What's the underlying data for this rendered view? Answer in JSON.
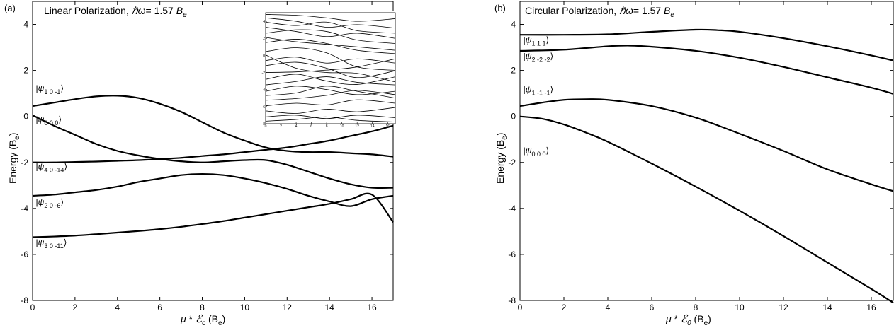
{
  "panels": [
    {
      "id": "a",
      "letter": "(a)",
      "title_prefix": "Linear Polarization, ",
      "title_hw": "ℏω",
      "title_rest": "= 1.57 ",
      "title_unit": "B",
      "title_unit_sub": "e",
      "xlabel_mu": "μ",
      "xlabel_star": " *",
      "xlabel_E": "ℰ",
      "xlabel_E_sub": "c",
      "xlabel_unit": " (B",
      "xlabel_unit_sub": "e",
      "xlabel_close": ")",
      "ylabel": "Energy (B",
      "ylabel_sub": "e",
      "ylabel_close": ")"
    },
    {
      "id": "b",
      "letter": "(b)",
      "title_prefix": "Circular Polarization, ",
      "title_hw": "ℏω",
      "title_rest": "= 1.57 ",
      "title_unit": "B",
      "title_unit_sub": "e",
      "xlabel_mu": "μ",
      "xlabel_star": " *",
      "xlabel_E": "ℰ",
      "xlabel_E_sub": "0",
      "xlabel_unit": " (B",
      "xlabel_unit_sub": "e",
      "xlabel_close": ")",
      "ylabel": "Energy (B",
      "ylabel_sub": "e",
      "ylabel_close": ")"
    }
  ],
  "chart_data": [
    {
      "type": "line",
      "panel": "a",
      "xlim": [
        0,
        17
      ],
      "ylim": [
        -8,
        5
      ],
      "xticks": [
        "0",
        "2",
        "4",
        "6",
        "8",
        "10",
        "12",
        "14",
        "16"
      ],
      "yticks": [
        "-8",
        "-6",
        "-4",
        "-2",
        "0",
        "2",
        "4"
      ],
      "grid": false,
      "series": [
        {
          "name": "|ψ10-1⟩",
          "label_main": "ψ",
          "label_sub": "1 0 -1",
          "label_at": [
            0.15,
            1.1
          ],
          "x": [
            0,
            1,
            2,
            3,
            4,
            5,
            6,
            7,
            8,
            9,
            10,
            11,
            12,
            13,
            14,
            15,
            16,
            17
          ],
          "y": [
            0.45,
            0.6,
            0.75,
            0.87,
            0.9,
            0.8,
            0.55,
            0.2,
            -0.25,
            -0.7,
            -1.05,
            -1.35,
            -1.5,
            -1.55,
            -1.55,
            -1.6,
            -1.65,
            -1.75
          ]
        },
        {
          "name": "|ψ000⟩",
          "label_main": "ψ",
          "label_sub": "0 0 0",
          "label_at": [
            0.15,
            -0.25
          ],
          "x": [
            0,
            1,
            2,
            3,
            4,
            5,
            6,
            7,
            8,
            9,
            10,
            11,
            12,
            13,
            14,
            15,
            16,
            17
          ],
          "y": [
            0.05,
            -0.4,
            -0.8,
            -1.2,
            -1.5,
            -1.7,
            -1.85,
            -1.95,
            -2.0,
            -1.95,
            -1.9,
            -1.9,
            -2.1,
            -2.4,
            -2.7,
            -2.95,
            -3.1,
            -3.1
          ]
        },
        {
          "name": "|ψ40-14⟩",
          "label_main": "ψ",
          "label_sub": "4 0 -14",
          "label_at": [
            0.15,
            -2.3
          ],
          "x": [
            0,
            1,
            2,
            3,
            4,
            5,
            6,
            7,
            8,
            9,
            10,
            11,
            12,
            13,
            14,
            15,
            16,
            17
          ],
          "y": [
            -2.0,
            -2.0,
            -1.98,
            -1.96,
            -1.93,
            -1.9,
            -1.85,
            -1.8,
            -1.72,
            -1.65,
            -1.55,
            -1.45,
            -1.35,
            -1.2,
            -1.05,
            -0.85,
            -0.65,
            -0.4
          ]
        },
        {
          "name": "|ψ20-6⟩",
          "label_main": "ψ",
          "label_sub": "2 0 -6",
          "label_at": [
            0.15,
            -3.85
          ],
          "x": [
            0,
            1,
            2,
            3,
            4,
            5,
            6,
            7,
            8,
            9,
            10,
            11,
            12,
            13,
            14,
            15,
            16,
            17
          ],
          "y": [
            -3.45,
            -3.4,
            -3.3,
            -3.2,
            -3.05,
            -2.85,
            -2.7,
            -2.55,
            -2.5,
            -2.55,
            -2.7,
            -2.9,
            -3.15,
            -3.45,
            -3.7,
            -3.9,
            -3.6,
            -3.45
          ]
        },
        {
          "name": "|ψ30-11⟩",
          "label_main": "ψ",
          "label_sub": "3 0 -11",
          "label_at": [
            0.15,
            -5.6
          ],
          "x": [
            0,
            1,
            2,
            3,
            4,
            5,
            6,
            7,
            8,
            9,
            10,
            11,
            12,
            13,
            14,
            15,
            16,
            17
          ],
          "y": [
            -5.25,
            -5.22,
            -5.18,
            -5.12,
            -5.05,
            -4.98,
            -4.9,
            -4.8,
            -4.68,
            -4.55,
            -4.4,
            -4.25,
            -4.1,
            -3.95,
            -3.8,
            -3.6,
            -3.4,
            -4.6
          ]
        }
      ],
      "inset": {
        "xlim": [
          0,
          17
        ],
        "ylim": [
          -8,
          5
        ],
        "xticks": [
          "0",
          "2",
          "4",
          "6",
          "8",
          "10",
          "12",
          "14",
          "16"
        ],
        "yticks": [
          "-8",
          "-6",
          "-4",
          "-2",
          "0",
          "2",
          "4"
        ],
        "series": [
          {
            "x": [
              0,
              4,
              8,
              12,
              17
            ],
            "y": [
              4.8,
              4.7,
              4.4,
              4.0,
              4.3
            ]
          },
          {
            "x": [
              0,
              4,
              8,
              12,
              17
            ],
            "y": [
              4.4,
              4.0,
              3.3,
              3.6,
              3.2
            ]
          },
          {
            "x": [
              0,
              4,
              8,
              12,
              17
            ],
            "y": [
              3.9,
              3.5,
              3.9,
              2.9,
              2.6
            ]
          },
          {
            "x": [
              0,
              4,
              8,
              12,
              17
            ],
            "y": [
              3.3,
              2.8,
              2.2,
              2.6,
              2.0
            ]
          },
          {
            "x": [
              0,
              4,
              8,
              12,
              17
            ],
            "y": [
              2.6,
              3.0,
              2.8,
              1.8,
              1.4
            ]
          },
          {
            "x": [
              0,
              4,
              8,
              12,
              17
            ],
            "y": [
              2.1,
              1.6,
              1.3,
              1.0,
              0.6
            ]
          },
          {
            "x": [
              0,
              4,
              8,
              12,
              17
            ],
            "y": [
              1.5,
              1.9,
              1.4,
              0.6,
              0.2
            ]
          },
          {
            "x": [
              0,
              4,
              8,
              12,
              17
            ],
            "y": [
              0.45,
              0.9,
              0.3,
              -1.35,
              -1.75
            ]
          },
          {
            "x": [
              0,
              4,
              8,
              12,
              17
            ],
            "y": [
              0.05,
              -1.5,
              -2.0,
              -2.1,
              -3.1
            ]
          },
          {
            "x": [
              0,
              4,
              8,
              12,
              17
            ],
            "y": [
              -0.6,
              -0.2,
              -0.9,
              -0.4,
              -0.9
            ]
          },
          {
            "x": [
              0,
              4,
              8,
              12,
              17
            ],
            "y": [
              -1.2,
              -0.8,
              -1.5,
              -2.6,
              -1.8
            ]
          },
          {
            "x": [
              0,
              4,
              8,
              12,
              17
            ],
            "y": [
              -2.0,
              -1.93,
              -1.72,
              -1.35,
              -0.4
            ]
          },
          {
            "x": [
              0,
              4,
              8,
              12,
              17
            ],
            "y": [
              -2.8,
              -2.2,
              -3.0,
              -3.4,
              -2.5
            ]
          },
          {
            "x": [
              0,
              4,
              8,
              12,
              17
            ],
            "y": [
              -3.45,
              -3.05,
              -2.5,
              -3.15,
              -3.45
            ]
          },
          {
            "x": [
              0,
              4,
              8,
              12,
              17
            ],
            "y": [
              -4.2,
              -3.6,
              -4.0,
              -4.6,
              -4.2
            ]
          },
          {
            "x": [
              0,
              4,
              8,
              12,
              17
            ],
            "y": [
              -4.7,
              -4.4,
              -3.6,
              -4.2,
              -5.0
            ]
          },
          {
            "x": [
              0,
              4,
              8,
              12,
              17
            ],
            "y": [
              -5.25,
              -5.05,
              -4.68,
              -4.1,
              -4.6
            ]
          },
          {
            "x": [
              0,
              4,
              8,
              12,
              17
            ],
            "y": [
              -5.9,
              -5.6,
              -5.8,
              -5.2,
              -5.6
            ]
          },
          {
            "x": [
              0,
              4,
              8,
              12,
              17
            ],
            "y": [
              -6.5,
              -6.8,
              -6.3,
              -6.6,
              -6.1
            ]
          },
          {
            "x": [
              0,
              4,
              8,
              12,
              17
            ],
            "y": [
              -7.2,
              -7.0,
              -7.4,
              -7.0,
              -7.3
            ]
          },
          {
            "x": [
              0,
              4,
              8,
              12,
              17
            ],
            "y": [
              -7.7,
              -7.5,
              -7.2,
              -7.6,
              -7.8
            ]
          }
        ]
      }
    },
    {
      "type": "line",
      "panel": "b",
      "xlim": [
        0,
        17
      ],
      "ylim": [
        -8,
        5
      ],
      "xticks": [
        "0",
        "2",
        "4",
        "6",
        "8",
        "10",
        "12",
        "14",
        "16"
      ],
      "yticks": [
        "-8",
        "-6",
        "-4",
        "-2",
        "0",
        "2",
        "4"
      ],
      "grid": false,
      "series": [
        {
          "name": "|ψ111⟩",
          "label_main": "ψ",
          "label_sub": "1 1 1",
          "label_at": [
            0.15,
            3.2
          ],
          "x": [
            0,
            2,
            4,
            6,
            8,
            9,
            10,
            12,
            14,
            16,
            17
          ],
          "y": [
            3.55,
            3.55,
            3.57,
            3.68,
            3.77,
            3.75,
            3.68,
            3.4,
            3.05,
            2.65,
            2.43
          ]
        },
        {
          "name": "|ψ2-2-2⟩",
          "label_main": "ψ",
          "label_sub": "2 -2 -2",
          "label_at": [
            0.15,
            2.5
          ],
          "x": [
            0,
            2,
            4,
            5,
            6,
            8,
            10,
            12,
            14,
            16,
            17
          ],
          "y": [
            2.85,
            2.9,
            3.05,
            3.08,
            3.03,
            2.85,
            2.55,
            2.15,
            1.7,
            1.25,
            0.98
          ]
        },
        {
          "name": "|ψ1-1-1⟩",
          "label_main": "ψ",
          "label_sub": "1 -1 -1",
          "label_at": [
            0.15,
            1.05
          ],
          "x": [
            0,
            1,
            2,
            3,
            4,
            6,
            8,
            10,
            12,
            14,
            16,
            17
          ],
          "y": [
            0.45,
            0.6,
            0.72,
            0.75,
            0.72,
            0.45,
            -0.05,
            -0.75,
            -1.5,
            -2.3,
            -2.95,
            -3.25
          ]
        },
        {
          "name": "|ψ000⟩",
          "label_main": "ψ",
          "label_sub": "0 0 0",
          "label_at": [
            0.15,
            -1.6
          ],
          "x": [
            0,
            1,
            2,
            3,
            4,
            6,
            8,
            10,
            12,
            14,
            16,
            17
          ],
          "y": [
            0.0,
            -0.1,
            -0.35,
            -0.7,
            -1.1,
            -2.05,
            -3.05,
            -4.1,
            -5.2,
            -6.35,
            -7.5,
            -8.1
          ]
        }
      ]
    }
  ]
}
